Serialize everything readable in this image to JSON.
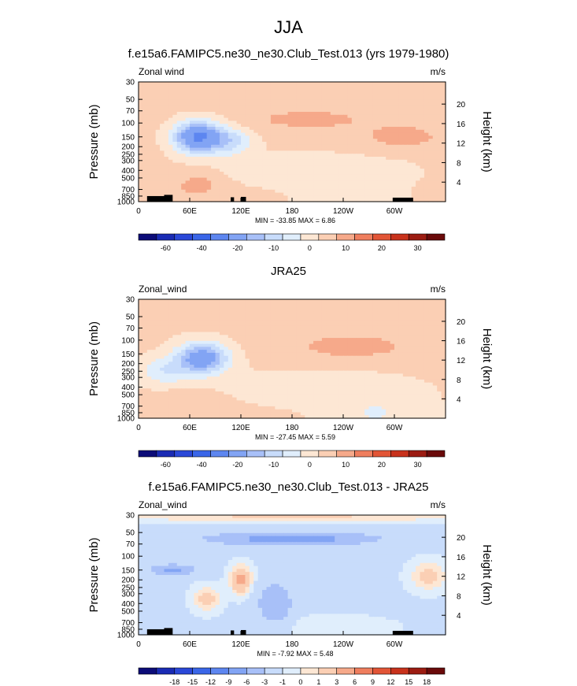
{
  "main_title": "JJA",
  "panels": [
    {
      "title": "f.e15a6.FAMIPC5.ne30_ne30.Club_Test.013 (yrs 1979-1980)",
      "variable": "Zonal wind",
      "units": "m/s",
      "stats": "MIN = -33.85   MAX =   6.86"
    },
    {
      "title": "JRA25",
      "variable": "Zonal_wind",
      "units": "m/s",
      "stats": "MIN = -27.45   MAX =   5.59"
    },
    {
      "title": "f.e15a6.FAMIPC5.ne30_ne30.Club_Test.013 - JRA25",
      "variable": "Zonal_wind",
      "units": "m/s",
      "stats": "MIN =  -7.92   MAX =   5.48"
    }
  ],
  "chart_data": [
    {
      "type": "heatmap",
      "title": "f.e15a6.FAMIPC5.ne30_ne30.Club_Test.013 (yrs 1979-1980)",
      "ylabel": "Pressure (mb)",
      "y2label": "Height (km)",
      "x_ticks": [
        "0",
        "60E",
        "120E",
        "180",
        "120W",
        "60W"
      ],
      "x_tick_values": [
        0,
        60,
        120,
        180,
        240,
        300
      ],
      "xlim": [
        0,
        360
      ],
      "y_ticks": [
        "30",
        "50",
        "70",
        "100",
        "150",
        "200",
        "250",
        "300",
        "400",
        "500",
        "700",
        "850",
        "1000"
      ],
      "y_tick_values": [
        30,
        50,
        70,
        100,
        150,
        200,
        250,
        300,
        400,
        500,
        700,
        850,
        1000
      ],
      "ylim": [
        1000,
        30
      ],
      "y_scale": "log",
      "y2_ticks": [
        "20",
        "16",
        "12",
        "8",
        "4"
      ],
      "y2_tick_values": [
        20,
        16,
        12,
        8,
        4
      ],
      "colorbar_labels": [
        "-60",
        "-40",
        "-20",
        "-10",
        "0",
        "10",
        "20",
        "30"
      ],
      "colorbar_colors": [
        "#0c0c78",
        "#1a2bb4",
        "#2a48d8",
        "#3a66e8",
        "#5d86f0",
        "#82a4f4",
        "#a8c0f8",
        "#c8dcfb",
        "#e0eefc",
        "#fde7d4",
        "#fbcfb4",
        "#f6a98a",
        "#ef7e5e",
        "#e25536",
        "#c8321c",
        "#9c1c12",
        "#6a0a0a"
      ],
      "features": [
        {
          "name": "jet core",
          "lon": 70,
          "p": 150,
          "value": -33.85
        },
        {
          "name": "upper easterly max",
          "lon": 315,
          "p": 150,
          "value": 6.86
        }
      ]
    },
    {
      "type": "heatmap",
      "title": "JRA25",
      "ylabel": "Pressure (mb)",
      "y2label": "Height (km)",
      "x_ticks": [
        "0",
        "60E",
        "120E",
        "180",
        "120W",
        "60W"
      ],
      "x_tick_values": [
        0,
        60,
        120,
        180,
        240,
        300
      ],
      "xlim": [
        0,
        360
      ],
      "y_ticks": [
        "30",
        "50",
        "70",
        "100",
        "150",
        "200",
        "250",
        "300",
        "400",
        "500",
        "700",
        "850",
        "1000"
      ],
      "y_tick_values": [
        30,
        50,
        70,
        100,
        150,
        200,
        250,
        300,
        400,
        500,
        700,
        850,
        1000
      ],
      "ylim": [
        1000,
        30
      ],
      "y_scale": "log",
      "y2_ticks": [
        "20",
        "16",
        "12",
        "8",
        "4"
      ],
      "y2_tick_values": [
        20,
        16,
        12,
        8,
        4
      ],
      "colorbar_labels": [
        "-60",
        "-40",
        "-20",
        "-10",
        "0",
        "10",
        "20",
        "30"
      ],
      "colorbar_colors": [
        "#0c0c78",
        "#1a2bb4",
        "#2a48d8",
        "#3a66e8",
        "#5d86f0",
        "#82a4f4",
        "#a8c0f8",
        "#c8dcfb",
        "#e0eefc",
        "#fde7d4",
        "#fbcfb4",
        "#f6a98a",
        "#ef7e5e",
        "#e25536",
        "#c8321c",
        "#9c1c12",
        "#6a0a0a"
      ],
      "features": [
        {
          "name": "jet core",
          "lon": 75,
          "p": 170,
          "value": -27.45
        },
        {
          "name": "upper easterly max",
          "lon": 305,
          "p": 150,
          "value": 5.59
        }
      ]
    },
    {
      "type": "heatmap",
      "title": "f.e15a6.FAMIPC5.ne30_ne30.Club_Test.013 - JRA25",
      "ylabel": "Pressure (mb)",
      "y2label": "Height (km)",
      "x_ticks": [
        "0",
        "60E",
        "120E",
        "180",
        "120W",
        "60W"
      ],
      "x_tick_values": [
        0,
        60,
        120,
        180,
        240,
        300
      ],
      "xlim": [
        0,
        360
      ],
      "y_ticks": [
        "30",
        "50",
        "70",
        "100",
        "150",
        "200",
        "250",
        "300",
        "400",
        "500",
        "700",
        "850",
        "1000"
      ],
      "y_tick_values": [
        30,
        50,
        70,
        100,
        150,
        200,
        250,
        300,
        400,
        500,
        700,
        850,
        1000
      ],
      "ylim": [
        1000,
        30
      ],
      "y_scale": "log",
      "y2_ticks": [
        "20",
        "16",
        "12",
        "8",
        "4"
      ],
      "y2_tick_values": [
        20,
        16,
        12,
        8,
        4
      ],
      "colorbar_labels": [
        "-18",
        "-15",
        "-12",
        "-9",
        "-6",
        "-3",
        "-1",
        "0",
        "1",
        "3",
        "6",
        "9",
        "12",
        "15",
        "18"
      ],
      "colorbar_colors": [
        "#0c0c78",
        "#1a2bb4",
        "#2a48d8",
        "#3a66e8",
        "#5d86f0",
        "#82a4f4",
        "#a8c0f8",
        "#c8dcfb",
        "#e0eefc",
        "#fde7d4",
        "#fbcfb4",
        "#f6a98a",
        "#ef7e5e",
        "#e25536",
        "#c8321c",
        "#9c1c12",
        "#6a0a0a"
      ],
      "features": [
        {
          "name": "upper negative band",
          "lon": 150,
          "p": 60,
          "value": -7.92
        },
        {
          "name": "positive cell",
          "lon": 120,
          "p": 200,
          "value": 5.48
        }
      ]
    }
  ]
}
